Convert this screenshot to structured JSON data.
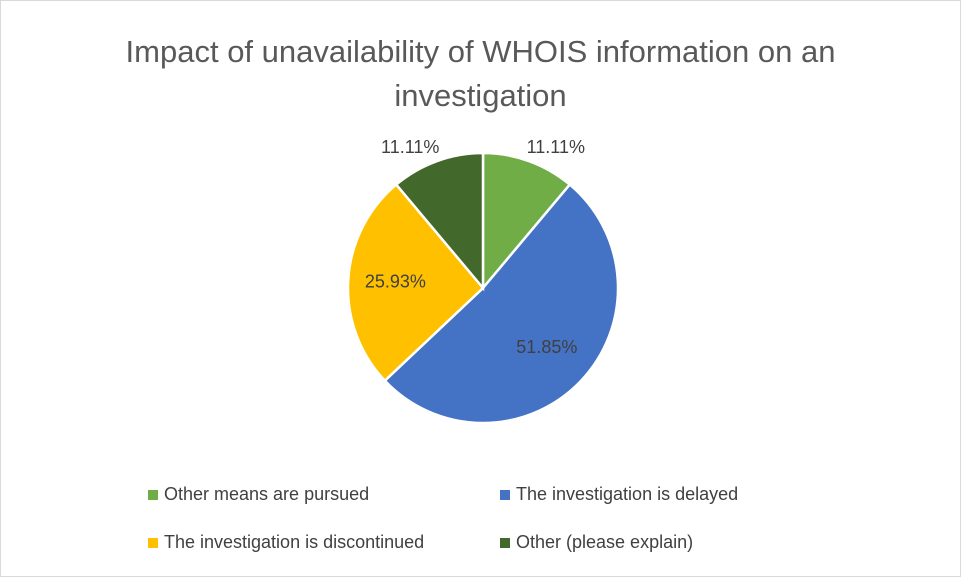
{
  "chart_data": {
    "type": "pie",
    "title": "Impact of unavailability of WHOIS information on an investigation",
    "categories": [
      "Other means are pursued",
      "The investigation is delayed",
      "The investigation is discontinued",
      "Other (please explain)"
    ],
    "values": [
      11.11,
      51.85,
      25.93,
      11.11
    ],
    "value_labels": [
      "11.11%",
      "51.85%",
      "25.93%",
      "11.11%"
    ],
    "colors": [
      "#70ad47",
      "#4472c4",
      "#ffc000",
      "#43682b"
    ],
    "legend": "bottom"
  }
}
